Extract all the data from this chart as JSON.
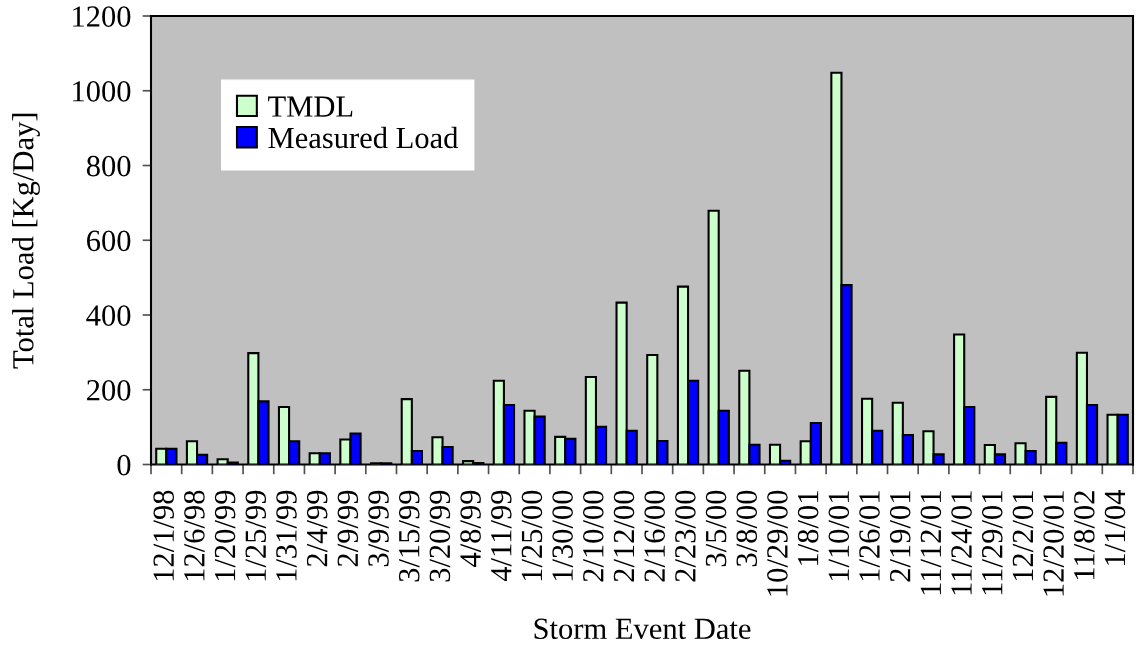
{
  "chart_data": {
    "type": "bar",
    "xlabel": "Storm Event Date",
    "ylabel": "Total Load [Kg/Day]",
    "categories": [
      "12/1/98",
      "12/6/98",
      "1/20/99",
      "1/25/99",
      "1/31/99",
      "2/4/99",
      "2/9/99",
      "3/9/99",
      "3/15/99",
      "3/20/99",
      "4/8/99",
      "4/11/99",
      "1/25/00",
      "1/30/00",
      "2/10/00",
      "2/12/00",
      "2/16/00",
      "2/23/00",
      "3/5/00",
      "3/8/00",
      "10/29/00",
      "1/8/01",
      "1/10/01",
      "1/26/01",
      "2/19/01",
      "11/12/01",
      "11/24/01",
      "11/29/01",
      "12/2/01",
      "12/20/01",
      "11/8/02",
      "1/1/04"
    ],
    "series": [
      {
        "name": "TMDL",
        "color": "#ccffcc",
        "values": [
          42,
          62,
          14,
          298,
          154,
          30,
          67,
          3,
          175,
          73,
          9,
          224,
          144,
          74,
          234,
          433,
          293,
          476,
          679,
          251,
          53,
          62,
          1048,
          176,
          165,
          89,
          348,
          52,
          57,
          181,
          299,
          133
        ]
      },
      {
        "name": "Measured Load",
        "color": "#0000ff",
        "values": [
          42,
          26,
          5,
          169,
          62,
          30,
          83,
          3,
          36,
          47,
          4,
          159,
          128,
          69,
          101,
          90,
          63,
          224,
          144,
          53,
          10,
          111,
          480,
          90,
          79,
          27,
          154,
          27,
          36,
          58,
          159,
          133
        ]
      }
    ],
    "ylim": [
      0,
      1200
    ],
    "yticks": [
      0,
      200,
      400,
      600,
      800,
      1000,
      1200
    ],
    "legend": "top left"
  }
}
